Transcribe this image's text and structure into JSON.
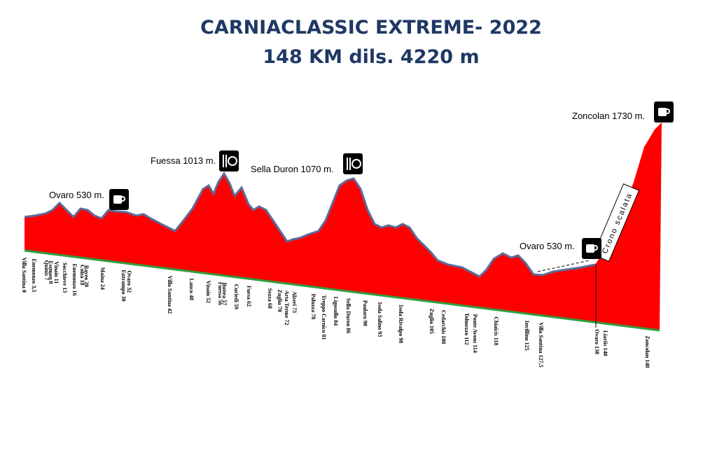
{
  "header": {
    "title": "CARNIACLASSIC EXTREME- 2022",
    "subtitle": "148 KM  dils. 4220 m"
  },
  "peaks": [
    "Ovaro 530 m.",
    "Fuessa 1013 m.",
    "Sella Duron 1070 m.",
    "Ovaro 530 m.",
    "Zoncolan 1730 m."
  ],
  "climb_label": "Crono scalata",
  "places": [
    "Villa Santina 0",
    "Enemonzo 3,5",
    "Quinis 7",
    "Esemon 8",
    "Vinaio 11",
    "Socchieve 13",
    "Enemonzo 16",
    "Colza 18",
    "Raveo 20",
    "Maina 24",
    "Entrampo 30",
    "Ovaro 32",
    "Villa Santina 42",
    "Lauco 48",
    "Vinaio 52",
    "Fuessa 56",
    "Buttea 57",
    "Curiedi 59",
    "Fuesa 62",
    "Sezza 68",
    "Zuglio 70",
    "Arta Terme 72",
    "Alzeri 73",
    "Paluzza 78",
    "Treppo Carnico 81",
    "Ligosullo 84",
    "Sella Duron 86",
    "Paularo 90",
    "Isola Salino 93",
    "Isola Rivalpo 98",
    "Zuglio 105",
    "Cedarchis 108",
    "Tolmezzo 112",
    "Ponte Avons 114",
    "Chiaicis 118",
    "Invillino 125",
    "Villa Santina 127,5",
    "Ovaro 138",
    "Liariis 140",
    "Zoncolan 148"
  ]
}
